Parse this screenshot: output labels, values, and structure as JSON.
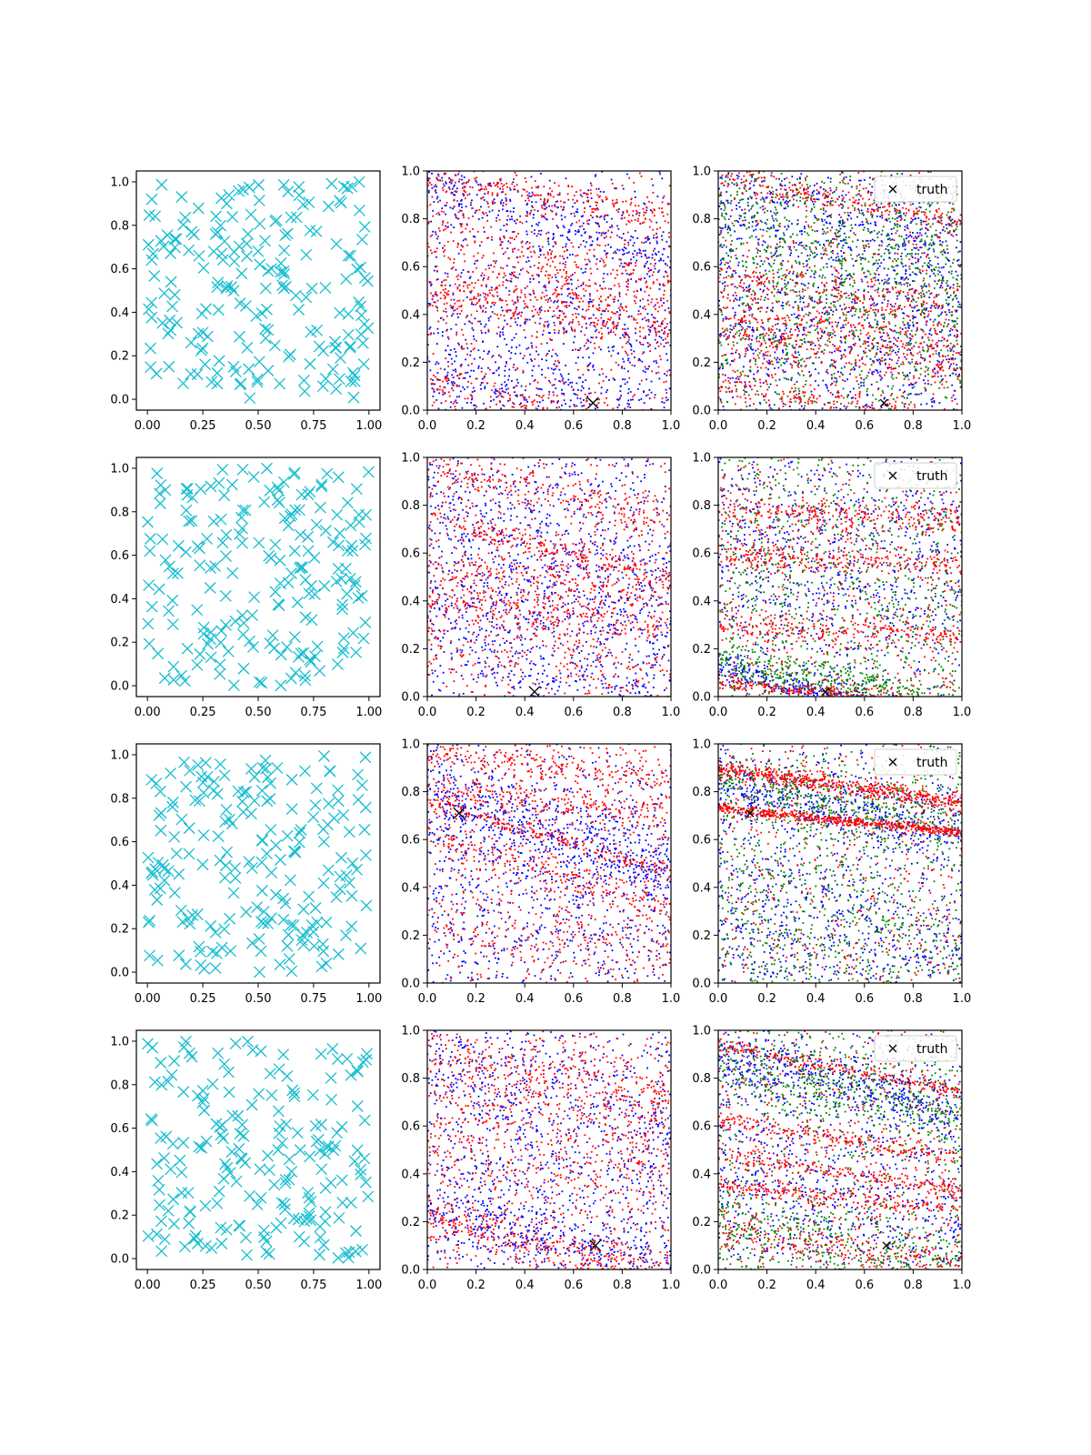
{
  "figure": {
    "rows": 4,
    "cols": 3,
    "colors": {
      "samples": "#17becf",
      "red": "#ff0000",
      "blue": "#0000ff",
      "green": "#008000",
      "truth": "#000000",
      "axes": "#000000"
    }
  },
  "chart_data": [
    {
      "type": "scatter",
      "panel": "r1c1",
      "marker": "x",
      "color": "#17becf",
      "xlim": [
        -0.05,
        1.05
      ],
      "ylim": [
        -0.05,
        1.05
      ],
      "xticks": [
        "0.00",
        "0.25",
        "0.50",
        "0.75",
        "1.00"
      ],
      "yticks": [
        "0.0",
        "0.2",
        "0.4",
        "0.6",
        "0.8",
        "1.0"
      ],
      "points": {
        "n": 200,
        "distribution": "uniform",
        "range": [
          0,
          1
        ]
      }
    },
    {
      "type": "scatter",
      "panel": "r1c2",
      "marker": "dot",
      "xlim": [
        0,
        1
      ],
      "ylim": [
        0,
        1
      ],
      "xticks": [
        "0.0",
        "0.2",
        "0.4",
        "0.6",
        "0.8",
        "1.0"
      ],
      "yticks": [
        "0.0",
        "0.2",
        "0.4",
        "0.6",
        "0.8",
        "1.0"
      ],
      "series": [
        {
          "color": "#0000ff",
          "n": 1400,
          "bands": [
            [
              0.95,
              -0.3,
              0.07
            ],
            [
              0.46,
              -0.15,
              0.15
            ],
            [
              0.15,
              -0.2,
              0.1
            ]
          ]
        },
        {
          "color": "#ff0000",
          "n": 1500,
          "bands": [
            [
              0.96,
              -0.15,
              0.03
            ],
            [
              0.48,
              -0.15,
              0.05
            ],
            [
              0.12,
              -0.25,
              0.05
            ],
            [
              0.75,
              -0.25,
              0.1
            ],
            [
              0.55,
              -0.1,
              0.08
            ]
          ]
        }
      ],
      "truth": [
        0.68,
        0.03
      ]
    },
    {
      "type": "scatter",
      "panel": "r1c3",
      "marker": "dot",
      "xlim": [
        0,
        1
      ],
      "ylim": [
        0,
        1
      ],
      "xticks": [
        "0.0",
        "0.2",
        "0.4",
        "0.6",
        "0.8",
        "1.0"
      ],
      "yticks": [
        "0.0",
        "0.2",
        "0.4",
        "0.6",
        "0.8",
        "1.0"
      ],
      "series": [
        {
          "color": "#0000ff",
          "n": 1400,
          "bands": [
            [
              0.9,
              -0.25,
              0.15
            ],
            [
              0.4,
              -0.2,
              0.2
            ]
          ]
        },
        {
          "color": "#008000",
          "n": 1300,
          "bands": [
            [
              0.85,
              -0.2,
              0.15
            ],
            [
              0.45,
              -0.2,
              0.2
            ]
          ]
        },
        {
          "color": "#ff0000",
          "n": 1500,
          "bands": [
            [
              0.1,
              -0.15,
              0.03
            ],
            [
              0.98,
              -0.2,
              0.03
            ],
            [
              0.55,
              -0.15,
              0.05
            ],
            [
              0.38,
              -0.1,
              0.05
            ],
            [
              0.3,
              -0.1,
              0.06
            ]
          ]
        }
      ],
      "truth": [
        0.68,
        0.03
      ],
      "legend": {
        "label": "truth",
        "loc": "upper right"
      }
    },
    {
      "type": "scatter",
      "panel": "r2c1",
      "marker": "x",
      "color": "#17becf",
      "xlim": [
        -0.05,
        1.05
      ],
      "ylim": [
        -0.05,
        1.05
      ],
      "xticks": [
        "0.00",
        "0.25",
        "0.50",
        "0.75",
        "1.00"
      ],
      "yticks": [
        "0.0",
        "0.2",
        "0.4",
        "0.6",
        "0.8",
        "1.0"
      ],
      "points": {
        "n": 200,
        "distribution": "uniform",
        "range": [
          0,
          1
        ]
      }
    },
    {
      "type": "scatter",
      "panel": "r2c2",
      "marker": "dot",
      "xlim": [
        0,
        1
      ],
      "ylim": [
        0,
        1
      ],
      "xticks": [
        "0.0",
        "0.2",
        "0.4",
        "0.6",
        "0.8",
        "1.0"
      ],
      "yticks": [
        "0.0",
        "0.2",
        "0.4",
        "0.6",
        "0.8",
        "1.0"
      ],
      "series": [
        {
          "color": "#0000ff",
          "n": 1400,
          "bands": [
            [
              0.8,
              -0.3,
              0.2
            ],
            [
              0.3,
              -0.2,
              0.2
            ]
          ]
        },
        {
          "color": "#ff0000",
          "n": 1500,
          "bands": [
            [
              0.75,
              -0.25,
              0.03
            ],
            [
              0.3,
              -0.2,
              0.1
            ],
            [
              0.55,
              -0.1,
              0.05
            ],
            [
              0.95,
              -0.2,
              0.05
            ],
            [
              0.4,
              -0.1,
              0.05
            ]
          ]
        }
      ],
      "truth": [
        0.44,
        0.02
      ]
    },
    {
      "type": "scatter",
      "panel": "r2c3",
      "marker": "dot",
      "xlim": [
        0,
        1
      ],
      "ylim": [
        0,
        1
      ],
      "xticks": [
        "0.0",
        "0.2",
        "0.4",
        "0.6",
        "0.8",
        "1.0"
      ],
      "yticks": [
        "0.0",
        "0.2",
        "0.4",
        "0.6",
        "0.8",
        "1.0"
      ],
      "series": [
        {
          "color": "#0000ff",
          "n": 1300,
          "bands": [
            [
              0.12,
              -0.25,
              0.03
            ],
            [
              0.6,
              -0.1,
              0.25
            ]
          ]
        },
        {
          "color": "#008000",
          "n": 1300,
          "bands": [
            [
              0.5,
              -0.1,
              0.3
            ],
            [
              0.15,
              -0.2,
              0.05
            ]
          ]
        },
        {
          "color": "#ff0000",
          "n": 1500,
          "bands": [
            [
              0.06,
              -0.1,
              0.015
            ],
            [
              0.78,
              -0.05,
              0.03
            ],
            [
              0.6,
              -0.05,
              0.03
            ],
            [
              0.3,
              -0.05,
              0.03
            ]
          ]
        }
      ],
      "truth": [
        0.44,
        0.02
      ],
      "legend": {
        "label": "truth",
        "loc": "upper right"
      }
    },
    {
      "type": "scatter",
      "panel": "r3c1",
      "marker": "x",
      "color": "#17becf",
      "xlim": [
        -0.05,
        1.05
      ],
      "ylim": [
        -0.05,
        1.05
      ],
      "xticks": [
        "0.00",
        "0.25",
        "0.50",
        "0.75",
        "1.00"
      ],
      "yticks": [
        "0.0",
        "0.2",
        "0.4",
        "0.6",
        "0.8",
        "1.0"
      ],
      "points": {
        "n": 200,
        "distribution": "uniform",
        "range": [
          0,
          1
        ]
      }
    },
    {
      "type": "scatter",
      "panel": "r3c2",
      "marker": "dot",
      "xlim": [
        0,
        1
      ],
      "ylim": [
        0,
        1
      ],
      "xticks": [
        "0.0",
        "0.2",
        "0.4",
        "0.6",
        "0.8",
        "1.0"
      ],
      "yticks": [
        "0.0",
        "0.2",
        "0.4",
        "0.6",
        "0.8",
        "1.0"
      ],
      "series": [
        {
          "color": "#0000ff",
          "n": 1400,
          "bands": [
            [
              0.78,
              -0.3,
              0.08
            ],
            [
              0.45,
              -0.2,
              0.25
            ]
          ]
        },
        {
          "color": "#ff0000",
          "n": 1500,
          "bands": [
            [
              0.76,
              -0.3,
              0.015
            ],
            [
              0.62,
              -0.3,
              0.04
            ],
            [
              0.95,
              -0.1,
              0.03
            ],
            [
              0.8,
              -0.1,
              0.03
            ],
            [
              0.25,
              -0.1,
              0.1
            ]
          ]
        }
      ],
      "truth": [
        0.13,
        0.71
      ]
    },
    {
      "type": "scatter",
      "panel": "r3c3",
      "marker": "dot",
      "xlim": [
        0,
        1
      ],
      "ylim": [
        0,
        1
      ],
      "xticks": [
        "0.0",
        "0.2",
        "0.4",
        "0.6",
        "0.8",
        "1.0"
      ],
      "yticks": [
        "0.0",
        "0.2",
        "0.4",
        "0.6",
        "0.8",
        "1.0"
      ],
      "series": [
        {
          "color": "#0000ff",
          "n": 1300,
          "bands": [
            [
              0.82,
              -0.2,
              0.07
            ],
            [
              0.3,
              -0.2,
              0.2
            ]
          ]
        },
        {
          "color": "#008000",
          "n": 1300,
          "bands": [
            [
              0.85,
              -0.2,
              0.07
            ],
            [
              0.35,
              -0.2,
              0.2
            ]
          ]
        },
        {
          "color": "#ff0000",
          "n": 1500,
          "bands": [
            [
              0.73,
              -0.1,
              0.01
            ],
            [
              0.9,
              -0.15,
              0.02
            ]
          ]
        }
      ],
      "truth": [
        0.13,
        0.71
      ],
      "legend": {
        "label": "truth",
        "loc": "upper right"
      }
    },
    {
      "type": "scatter",
      "panel": "r4c1",
      "marker": "x",
      "color": "#17becf",
      "xlim": [
        -0.05,
        1.05
      ],
      "ylim": [
        -0.05,
        1.05
      ],
      "xticks": [
        "0.00",
        "0.25",
        "0.50",
        "0.75",
        "1.00"
      ],
      "yticks": [
        "0.0",
        "0.2",
        "0.4",
        "0.6",
        "0.8",
        "1.0"
      ],
      "points": {
        "n": 200,
        "distribution": "uniform",
        "range": [
          0,
          1
        ]
      }
    },
    {
      "type": "scatter",
      "panel": "r4c2",
      "marker": "dot",
      "xlim": [
        0,
        1
      ],
      "ylim": [
        0,
        1
      ],
      "xticks": [
        "0.0",
        "0.2",
        "0.4",
        "0.6",
        "0.8",
        "1.0"
      ],
      "yticks": [
        "0.0",
        "0.2",
        "0.4",
        "0.6",
        "0.8",
        "1.0"
      ],
      "series": [
        {
          "color": "#0000ff",
          "n": 1400,
          "bands": [
            [
              0.25,
              -0.25,
              0.06
            ],
            [
              0.85,
              -0.2,
              0.15
            ],
            [
              0.4,
              -0.1,
              0.2
            ]
          ]
        },
        {
          "color": "#ff0000",
          "n": 1500,
          "bands": [
            [
              0.22,
              -0.25,
              0.05
            ],
            [
              0.9,
              -0.2,
              0.08
            ],
            [
              0.55,
              -0.15,
              0.15
            ]
          ]
        }
      ],
      "truth": [
        0.69,
        0.1
      ]
    },
    {
      "type": "scatter",
      "panel": "r4c3",
      "marker": "dot",
      "xlim": [
        0,
        1
      ],
      "ylim": [
        0,
        1
      ],
      "xticks": [
        "0.0",
        "0.2",
        "0.4",
        "0.6",
        "0.8",
        "1.0"
      ],
      "yticks": [
        "0.0",
        "0.2",
        "0.4",
        "0.6",
        "0.8",
        "1.0"
      ],
      "series": [
        {
          "color": "#0000ff",
          "n": 1300,
          "bands": [
            [
              0.88,
              -0.2,
              0.06
            ],
            [
              0.4,
              -0.15,
              0.2
            ]
          ]
        },
        {
          "color": "#008000",
          "n": 1300,
          "bands": [
            [
              0.85,
              -0.2,
              0.08
            ],
            [
              0.2,
              -0.2,
              0.1
            ]
          ]
        },
        {
          "color": "#ff0000",
          "n": 1500,
          "bands": [
            [
              0.94,
              -0.2,
              0.015
            ],
            [
              0.62,
              -0.15,
              0.02
            ],
            [
              0.48,
              -0.15,
              0.02
            ],
            [
              0.35,
              -0.1,
              0.02
            ],
            [
              0.17,
              -0.15,
              0.04
            ]
          ]
        }
      ],
      "truth": [
        0.69,
        0.1
      ],
      "legend": {
        "label": "truth",
        "loc": "upper right"
      }
    }
  ]
}
